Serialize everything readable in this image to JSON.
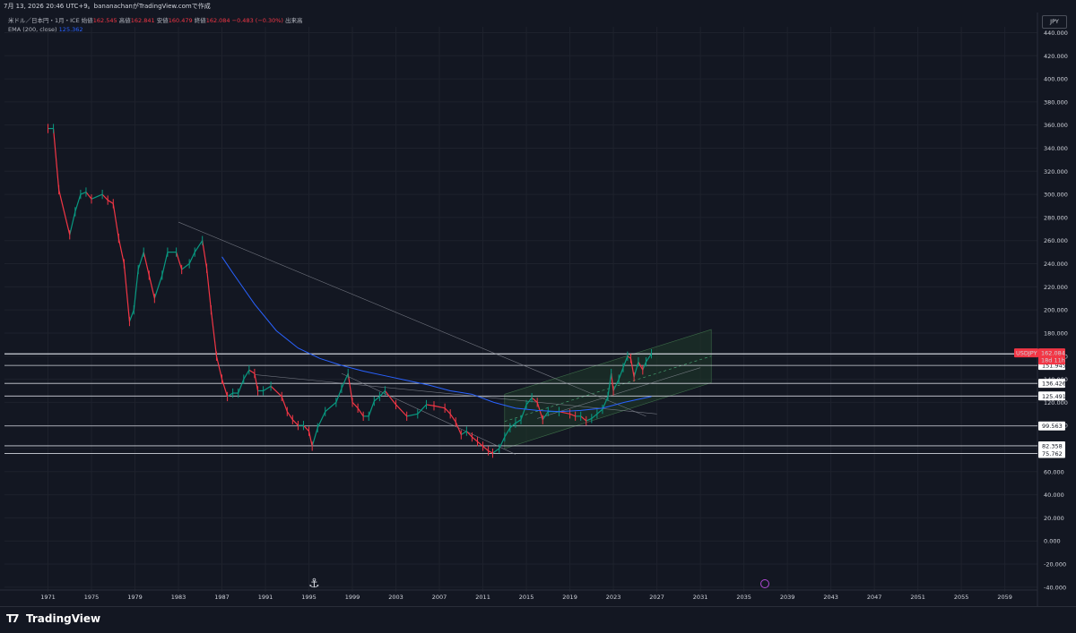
{
  "header": {
    "status_line": "7月 13, 2026 20:46 UTC+9。bananachanがTradingView.comで作成",
    "symbol_line": "米ドル／日本円・1月・ICE",
    "open_label": "始値",
    "open_value": "162.545",
    "high_label": "高値",
    "high_value": "162.841",
    "low_label": "安値",
    "low_value": "160.479",
    "close_label": "終値",
    "close_value": "162.084",
    "change_value": "−0.483 (−0.30%)",
    "volume_label": "出来高",
    "ema_label": "EMA (200, close)",
    "ema_value": "125.362"
  },
  "currency_button": "JPY",
  "price_tag": {
    "symbol": "USDJPY",
    "price": "162.084",
    "countdown": "18d 11h"
  },
  "horizontal_levels": [
    "161.814",
    "151.945",
    "136.426",
    "125.491",
    "99.563",
    "82.358",
    "75.762"
  ],
  "brand": "TradingView",
  "colors": {
    "background": "#131722",
    "up": "#089981",
    "down": "#f23645",
    "ema": "#2962ff",
    "channel": "#1f3b2a"
  },
  "chart_data": {
    "type": "line",
    "title": "",
    "xlabel": "",
    "ylabel": "",
    "x_ticks": [
      "1971",
      "1975",
      "1979",
      "1983",
      "1987",
      "1991",
      "1995",
      "1999",
      "2003",
      "2007",
      "2011",
      "2015",
      "2019",
      "2023",
      "2027",
      "2031",
      "2035",
      "2039",
      "2043",
      "2047",
      "2051",
      "2055",
      "2059"
    ],
    "y_ticks": [
      "440.000",
      "420.000",
      "400.000",
      "380.000",
      "360.000",
      "340.000",
      "320.000",
      "300.000",
      "280.000",
      "260.000",
      "240.000",
      "220.000",
      "200.000",
      "180.000",
      "160.000",
      "140.000",
      "120.000",
      "100.000",
      "80.000",
      "60.000",
      "40.000",
      "20.000",
      "0.000",
      "-20.000",
      "-40.000"
    ],
    "ylim": [
      -44,
      445
    ],
    "xlim": [
      1967,
      2062
    ],
    "grid": true,
    "legend": "top-left",
    "series": [
      {
        "name": "米ドル／日本円",
        "x": [
          1971.0,
          1971.5,
          1972.0,
          1973.0,
          1973.5,
          1974.0,
          1974.5,
          1975.0,
          1976.0,
          1976.5,
          1977.0,
          1977.5,
          1978.0,
          1978.5,
          1978.9,
          1979.3,
          1979.8,
          1980.3,
          1980.8,
          1981.5,
          1982.0,
          1982.8,
          1983.3,
          1984.0,
          1984.5,
          1985.2,
          1985.6,
          1986.0,
          1986.5,
          1987.0,
          1987.5,
          1988.0,
          1988.5,
          1989.0,
          1989.5,
          1990.0,
          1990.3,
          1990.8,
          1991.5,
          1992.5,
          1993.0,
          1993.5,
          1994.0,
          1994.5,
          1995.0,
          1995.3,
          1995.8,
          1996.5,
          1997.5,
          1998.0,
          1998.6,
          1999.0,
          1999.5,
          2000.0,
          2000.5,
          2001.0,
          2001.5,
          2002.0,
          2003.0,
          2004.0,
          2005.0,
          2005.8,
          2006.5,
          2007.5,
          2008.0,
          2008.5,
          2009.0,
          2009.5,
          2010.0,
          2010.5,
          2011.0,
          2011.5,
          2011.9,
          2012.5,
          2013.0,
          2013.5,
          2014.0,
          2014.5,
          2015.0,
          2015.5,
          2016.0,
          2016.5,
          2017.0,
          2018.0,
          2019.0,
          2019.5,
          2020.0,
          2020.5,
          2021.0,
          2021.5,
          2022.0,
          2022.5,
          2022.8,
          2023.0,
          2023.5,
          2023.9,
          2024.3,
          2024.6,
          2024.9,
          2025.3,
          2025.7,
          2026.0,
          2026.5
        ],
        "y": [
          357,
          357,
          304,
          265,
          285,
          300,
          302,
          296,
          300,
          295,
          292,
          262,
          240,
          190,
          200,
          235,
          250,
          230,
          210,
          230,
          250,
          250,
          235,
          240,
          250,
          260,
          236,
          200,
          160,
          140,
          125,
          128,
          128,
          140,
          148,
          145,
          130,
          130,
          134,
          125,
          112,
          105,
          100,
          100,
          95,
          82,
          98,
          112,
          120,
          132,
          145,
          120,
          115,
          108,
          108,
          121,
          125,
          130,
          118,
          108,
          110,
          118,
          117,
          115,
          110,
          103,
          92,
          95,
          90,
          86,
          82,
          78,
          76,
          80,
          90,
          98,
          102,
          105,
          118,
          124,
          120,
          105,
          112,
          112,
          110,
          108,
          108,
          104,
          106,
          110,
          114,
          125,
          145,
          130,
          140,
          150,
          160,
          158,
          142,
          155,
          148,
          155,
          162
        ],
        "color": "#089981"
      },
      {
        "name": "EMA (200, close)",
        "x": [
          1987.0,
          1988.0,
          1990.0,
          1992.0,
          1994.0,
          1996.0,
          1998.0,
          2000.0,
          2002.0,
          2004.0,
          2006.0,
          2008.0,
          2010.0,
          2012.0,
          2014.0,
          2016.0,
          2018.0,
          2020.0,
          2022.0,
          2024.0,
          2026.5
        ],
        "y": [
          246,
          232,
          205,
          182,
          167,
          158,
          152,
          147,
          143,
          139,
          135,
          130,
          127,
          120,
          115,
          113,
          112,
          113,
          115,
          120,
          125
        ],
        "color": "#2962ff"
      }
    ],
    "trend_lines": [
      {
        "x": [
          1983.0,
          2026.0
        ],
        "y": [
          276,
          108
        ]
      },
      {
        "x": [
          1990.0,
          2027.0
        ],
        "y": [
          144,
          110
        ]
      },
      {
        "x": [
          1998.0,
          2014.0
        ],
        "y": [
          145,
          75
        ]
      },
      {
        "x": [
          2016.0,
          2031.0
        ],
        "y": [
          106,
          150
        ]
      }
    ],
    "channel": {
      "x": [
        2013.0,
        2032.0
      ],
      "upper": [
        127,
        183
      ],
      "lower": [
        80,
        137
      ]
    }
  }
}
